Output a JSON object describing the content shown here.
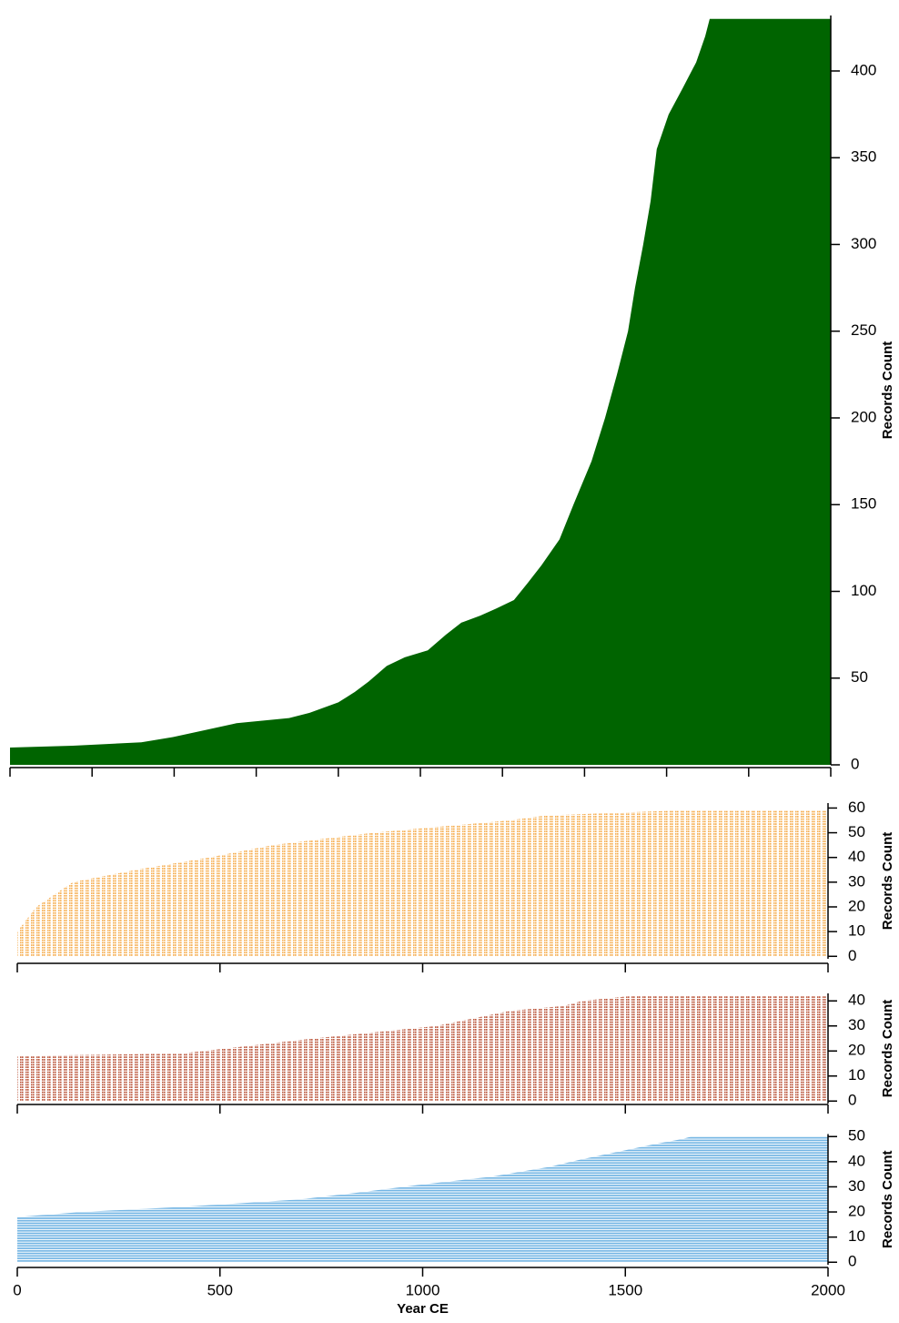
{
  "chart_data": [
    {
      "type": "area",
      "color": "#006400",
      "style": "solid",
      "x": [
        0,
        0,
        153,
        320,
        397,
        475,
        552,
        680,
        730,
        800,
        840,
        874,
        918,
        962,
        1018,
        1062,
        1100,
        1146,
        1184,
        1228,
        1262,
        1295,
        1339,
        1373,
        1417,
        1450,
        1479,
        1506,
        1523,
        1543,
        1561,
        1576,
        1605,
        1639,
        1672,
        1694,
        1705
      ],
      "values": [
        0,
        10,
        11,
        13,
        16,
        20,
        24,
        27,
        30,
        36,
        42,
        48,
        57,
        62,
        66,
        75,
        82,
        86,
        90,
        95,
        105,
        115,
        130,
        150,
        175,
        200,
        225,
        250,
        275,
        300,
        325,
        355,
        375,
        390,
        405,
        420,
        430
      ],
      "xlim": [
        0,
        2000
      ],
      "ylim": [
        0,
        432
      ],
      "xticks": [
        0,
        200,
        400,
        600,
        800,
        1000,
        1200,
        1400,
        1600,
        1800,
        2000
      ],
      "yticks": [
        0,
        50,
        100,
        150,
        200,
        250,
        300,
        350,
        400
      ],
      "ylabel": "Records Count"
    },
    {
      "type": "area",
      "color": "#f5a742",
      "style": "dotted",
      "x": [
        0,
        0,
        47,
        92,
        137,
        294,
        474,
        631,
        878,
        1080,
        1214,
        1304,
        1630
      ],
      "values": [
        0,
        10,
        20,
        25,
        30,
        35,
        40,
        45,
        50,
        53,
        55,
        57,
        59
      ],
      "xlim": [
        0,
        2000
      ],
      "ylim": [
        -1,
        62
      ],
      "xticks": [
        0,
        500,
        1000,
        1500,
        2000
      ],
      "yticks": [
        0,
        10,
        20,
        30,
        40,
        50,
        60
      ],
      "ylabel": "Records Count"
    },
    {
      "type": "area",
      "color": "#b5472a",
      "style": "dotted",
      "x": [
        0,
        0,
        406,
        732,
        855,
        1035,
        1125,
        1215,
        1349,
        1394,
        1517
      ],
      "values": [
        0,
        18,
        19,
        25,
        27,
        30,
        33,
        36,
        38,
        40,
        42
      ],
      "xlim": [
        0,
        2000
      ],
      "ylim": [
        -1,
        43
      ],
      "xticks": [
        0,
        500,
        1000,
        1500,
        2000
      ],
      "yticks": [
        0,
        10,
        20,
        30,
        40
      ],
      "ylabel": "Records Count"
    },
    {
      "type": "area",
      "color": "#6fb3e3",
      "style": "solid-rows",
      "x": [
        0,
        0,
        160,
        406,
        698,
        855,
        1001,
        1169,
        1315,
        1394,
        1483,
        1573,
        1640,
        1663
      ],
      "values": [
        0,
        18,
        20,
        22,
        25,
        28,
        31,
        34,
        38,
        41,
        44,
        47,
        49,
        50
      ],
      "xlim": [
        0,
        2000
      ],
      "ylim": [
        -1,
        51
      ],
      "xticks": [
        0,
        500,
        1000,
        1500,
        2000
      ],
      "xticklabels": true,
      "yticks": [
        0,
        10,
        20,
        30,
        40,
        50
      ],
      "ylabel": "Records Count",
      "xlabel": "Year CE"
    }
  ]
}
